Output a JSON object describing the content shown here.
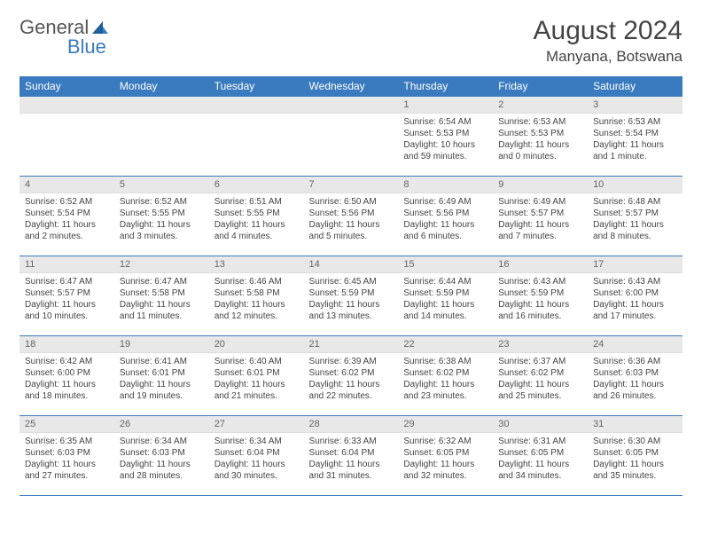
{
  "logo": {
    "text1": "General",
    "text2": "Blue",
    "color1": "#555555",
    "color2": "#3a7bbf"
  },
  "header": {
    "month_title": "August 2024",
    "location": "Manyana, Botswana"
  },
  "colors": {
    "header_bg": "#3a7bbf",
    "header_text": "#ffffff",
    "daynum_bg": "#e8e8e8",
    "border": "#3a7bbf",
    "text": "#444444",
    "background": "#ffffff"
  },
  "day_headers": [
    "Sunday",
    "Monday",
    "Tuesday",
    "Wednesday",
    "Thursday",
    "Friday",
    "Saturday"
  ],
  "weeks": [
    [
      null,
      null,
      null,
      null,
      {
        "n": "1",
        "sr": "Sunrise: 6:54 AM",
        "ss": "Sunset: 5:53 PM",
        "d1": "Daylight: 10 hours",
        "d2": "and 59 minutes."
      },
      {
        "n": "2",
        "sr": "Sunrise: 6:53 AM",
        "ss": "Sunset: 5:53 PM",
        "d1": "Daylight: 11 hours",
        "d2": "and 0 minutes."
      },
      {
        "n": "3",
        "sr": "Sunrise: 6:53 AM",
        "ss": "Sunset: 5:54 PM",
        "d1": "Daylight: 11 hours",
        "d2": "and 1 minute."
      }
    ],
    [
      {
        "n": "4",
        "sr": "Sunrise: 6:52 AM",
        "ss": "Sunset: 5:54 PM",
        "d1": "Daylight: 11 hours",
        "d2": "and 2 minutes."
      },
      {
        "n": "5",
        "sr": "Sunrise: 6:52 AM",
        "ss": "Sunset: 5:55 PM",
        "d1": "Daylight: 11 hours",
        "d2": "and 3 minutes."
      },
      {
        "n": "6",
        "sr": "Sunrise: 6:51 AM",
        "ss": "Sunset: 5:55 PM",
        "d1": "Daylight: 11 hours",
        "d2": "and 4 minutes."
      },
      {
        "n": "7",
        "sr": "Sunrise: 6:50 AM",
        "ss": "Sunset: 5:56 PM",
        "d1": "Daylight: 11 hours",
        "d2": "and 5 minutes."
      },
      {
        "n": "8",
        "sr": "Sunrise: 6:49 AM",
        "ss": "Sunset: 5:56 PM",
        "d1": "Daylight: 11 hours",
        "d2": "and 6 minutes."
      },
      {
        "n": "9",
        "sr": "Sunrise: 6:49 AM",
        "ss": "Sunset: 5:57 PM",
        "d1": "Daylight: 11 hours",
        "d2": "and 7 minutes."
      },
      {
        "n": "10",
        "sr": "Sunrise: 6:48 AM",
        "ss": "Sunset: 5:57 PM",
        "d1": "Daylight: 11 hours",
        "d2": "and 8 minutes."
      }
    ],
    [
      {
        "n": "11",
        "sr": "Sunrise: 6:47 AM",
        "ss": "Sunset: 5:57 PM",
        "d1": "Daylight: 11 hours",
        "d2": "and 10 minutes."
      },
      {
        "n": "12",
        "sr": "Sunrise: 6:47 AM",
        "ss": "Sunset: 5:58 PM",
        "d1": "Daylight: 11 hours",
        "d2": "and 11 minutes."
      },
      {
        "n": "13",
        "sr": "Sunrise: 6:46 AM",
        "ss": "Sunset: 5:58 PM",
        "d1": "Daylight: 11 hours",
        "d2": "and 12 minutes."
      },
      {
        "n": "14",
        "sr": "Sunrise: 6:45 AM",
        "ss": "Sunset: 5:59 PM",
        "d1": "Daylight: 11 hours",
        "d2": "and 13 minutes."
      },
      {
        "n": "15",
        "sr": "Sunrise: 6:44 AM",
        "ss": "Sunset: 5:59 PM",
        "d1": "Daylight: 11 hours",
        "d2": "and 14 minutes."
      },
      {
        "n": "16",
        "sr": "Sunrise: 6:43 AM",
        "ss": "Sunset: 5:59 PM",
        "d1": "Daylight: 11 hours",
        "d2": "and 16 minutes."
      },
      {
        "n": "17",
        "sr": "Sunrise: 6:43 AM",
        "ss": "Sunset: 6:00 PM",
        "d1": "Daylight: 11 hours",
        "d2": "and 17 minutes."
      }
    ],
    [
      {
        "n": "18",
        "sr": "Sunrise: 6:42 AM",
        "ss": "Sunset: 6:00 PM",
        "d1": "Daylight: 11 hours",
        "d2": "and 18 minutes."
      },
      {
        "n": "19",
        "sr": "Sunrise: 6:41 AM",
        "ss": "Sunset: 6:01 PM",
        "d1": "Daylight: 11 hours",
        "d2": "and 19 minutes."
      },
      {
        "n": "20",
        "sr": "Sunrise: 6:40 AM",
        "ss": "Sunset: 6:01 PM",
        "d1": "Daylight: 11 hours",
        "d2": "and 21 minutes."
      },
      {
        "n": "21",
        "sr": "Sunrise: 6:39 AM",
        "ss": "Sunset: 6:02 PM",
        "d1": "Daylight: 11 hours",
        "d2": "and 22 minutes."
      },
      {
        "n": "22",
        "sr": "Sunrise: 6:38 AM",
        "ss": "Sunset: 6:02 PM",
        "d1": "Daylight: 11 hours",
        "d2": "and 23 minutes."
      },
      {
        "n": "23",
        "sr": "Sunrise: 6:37 AM",
        "ss": "Sunset: 6:02 PM",
        "d1": "Daylight: 11 hours",
        "d2": "and 25 minutes."
      },
      {
        "n": "24",
        "sr": "Sunrise: 6:36 AM",
        "ss": "Sunset: 6:03 PM",
        "d1": "Daylight: 11 hours",
        "d2": "and 26 minutes."
      }
    ],
    [
      {
        "n": "25",
        "sr": "Sunrise: 6:35 AM",
        "ss": "Sunset: 6:03 PM",
        "d1": "Daylight: 11 hours",
        "d2": "and 27 minutes."
      },
      {
        "n": "26",
        "sr": "Sunrise: 6:34 AM",
        "ss": "Sunset: 6:03 PM",
        "d1": "Daylight: 11 hours",
        "d2": "and 28 minutes."
      },
      {
        "n": "27",
        "sr": "Sunrise: 6:34 AM",
        "ss": "Sunset: 6:04 PM",
        "d1": "Daylight: 11 hours",
        "d2": "and 30 minutes."
      },
      {
        "n": "28",
        "sr": "Sunrise: 6:33 AM",
        "ss": "Sunset: 6:04 PM",
        "d1": "Daylight: 11 hours",
        "d2": "and 31 minutes."
      },
      {
        "n": "29",
        "sr": "Sunrise: 6:32 AM",
        "ss": "Sunset: 6:05 PM",
        "d1": "Daylight: 11 hours",
        "d2": "and 32 minutes."
      },
      {
        "n": "30",
        "sr": "Sunrise: 6:31 AM",
        "ss": "Sunset: 6:05 PM",
        "d1": "Daylight: 11 hours",
        "d2": "and 34 minutes."
      },
      {
        "n": "31",
        "sr": "Sunrise: 6:30 AM",
        "ss": "Sunset: 6:05 PM",
        "d1": "Daylight: 11 hours",
        "d2": "and 35 minutes."
      }
    ]
  ]
}
